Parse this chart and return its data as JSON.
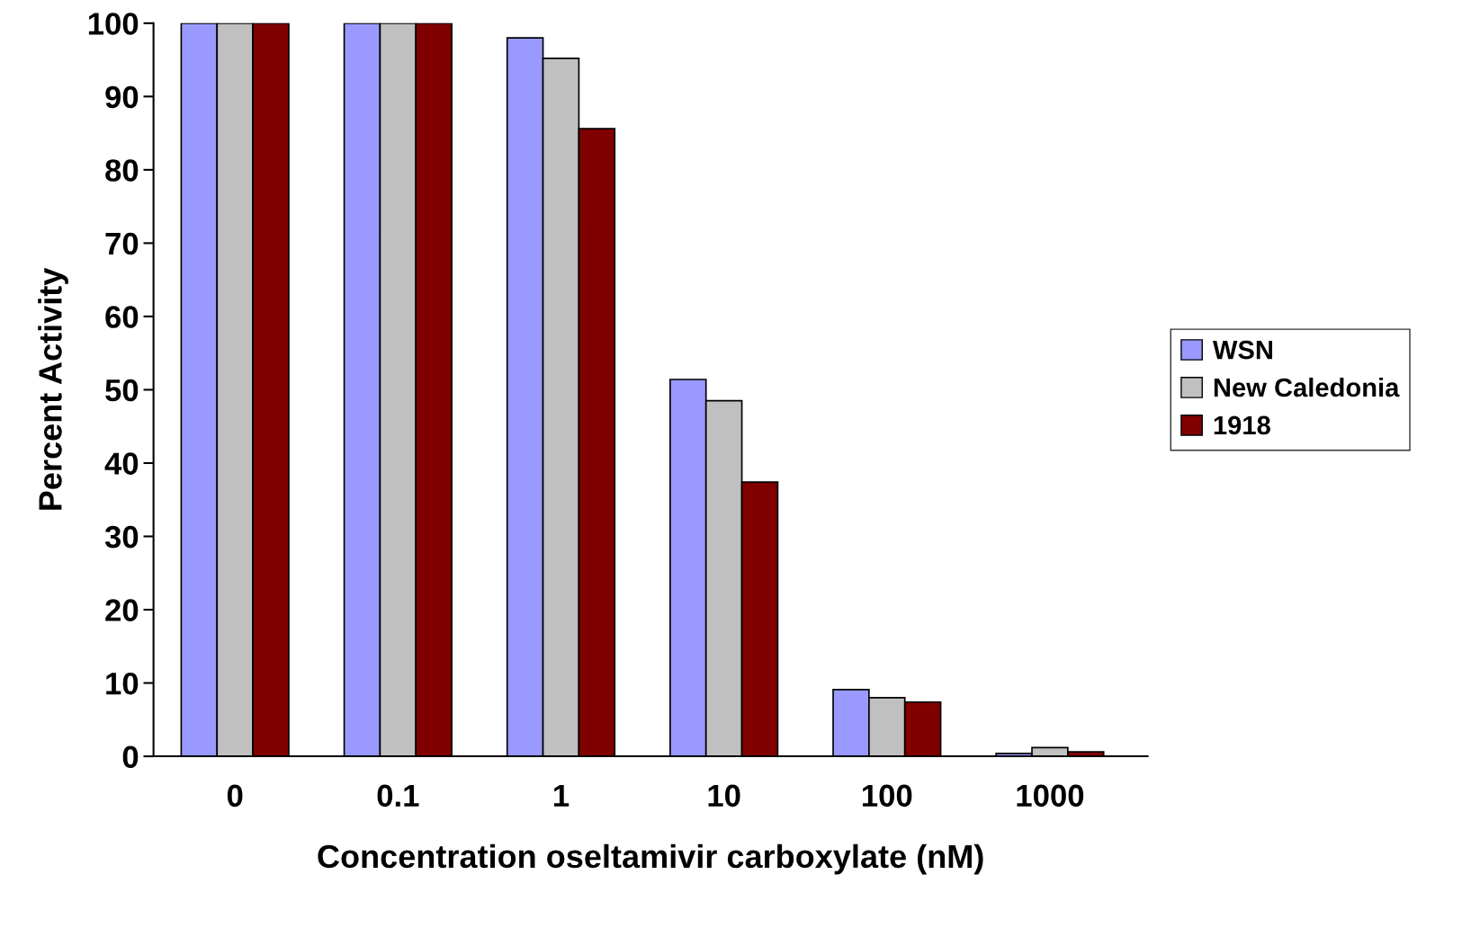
{
  "chart_data": {
    "type": "bar",
    "xlabel": "Concentration oseltamivir carboxylate (nM)",
    "ylabel": "Percent Activity",
    "categories": [
      "0",
      "0.1",
      "1",
      "10",
      "100",
      "1000"
    ],
    "series": [
      {
        "name": "WSN",
        "color": "#9999ff",
        "values": [
          100,
          100,
          98.0,
          51.4,
          9.1,
          0.4
        ]
      },
      {
        "name": "New Caledonia",
        "color": "#c0c0c0",
        "values": [
          100,
          100,
          95.2,
          48.5,
          8.0,
          1.2
        ]
      },
      {
        "name": "1918",
        "color": "#800000",
        "values": [
          100,
          100,
          85.6,
          37.4,
          7.4,
          0.6
        ]
      }
    ],
    "ylim": [
      0,
      100
    ],
    "yticks": [
      0,
      10,
      20,
      30,
      40,
      50,
      60,
      70,
      80,
      90,
      100
    ],
    "grid": false,
    "legend": "right"
  }
}
